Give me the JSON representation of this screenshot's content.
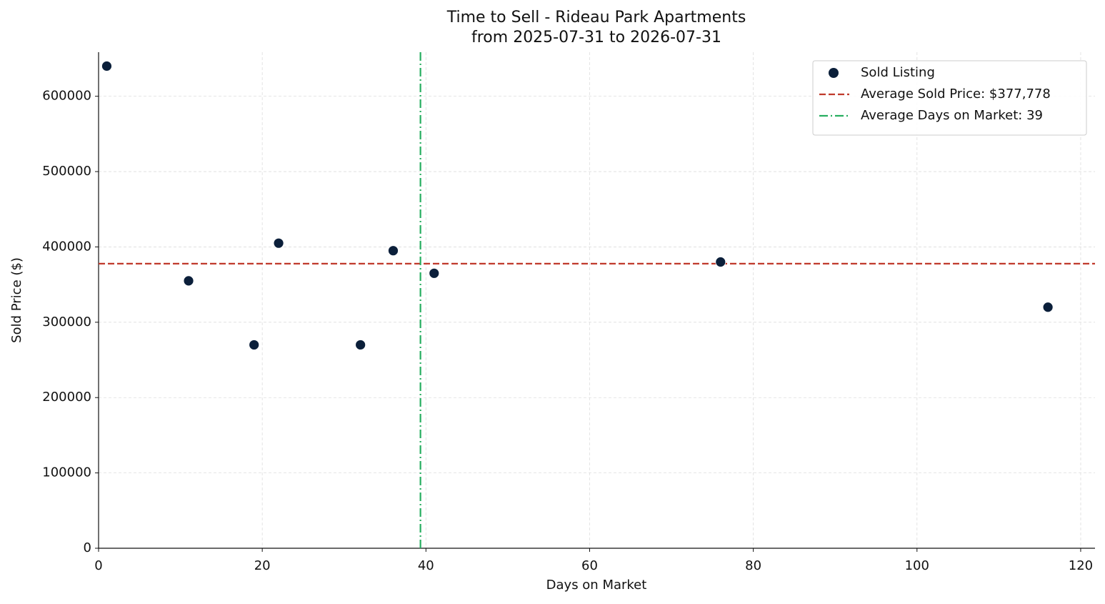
{
  "chart_data": {
    "type": "scatter",
    "title": "Time to Sell - Rideau Park Apartments",
    "subtitle": "from 2025-07-31 to 2026-07-31",
    "x_label": "Days on Market",
    "y_label": "Sold Price ($)",
    "series": [
      {
        "name": "Sold Listing",
        "color": "#0b1f3a",
        "x": [
          1,
          11,
          19,
          22,
          32,
          36,
          41,
          76,
          116
        ],
        "values": [
          640000,
          355000,
          270000,
          405000,
          270000,
          395000,
          365000,
          380000,
          320000
        ]
      }
    ],
    "reference_lines": [
      {
        "name": "Average Sold Price: $377,778",
        "color": "#c0392b",
        "orientation": "horizontal",
        "style": "dashed",
        "value": 377778
      },
      {
        "name": "Average Days on Market: 39",
        "color": "#27ae60",
        "orientation": "vertical",
        "style": "dashdot",
        "value": 39.33
      }
    ],
    "xlim": [
      0,
      121.75
    ],
    "ylim": [
      0,
      658500
    ],
    "xticks": [
      0,
      20,
      40,
      60,
      80,
      100,
      120
    ],
    "yticks": [
      0,
      100000,
      200000,
      300000,
      400000,
      500000,
      600000
    ],
    "grid": true,
    "legend": "upper right"
  }
}
